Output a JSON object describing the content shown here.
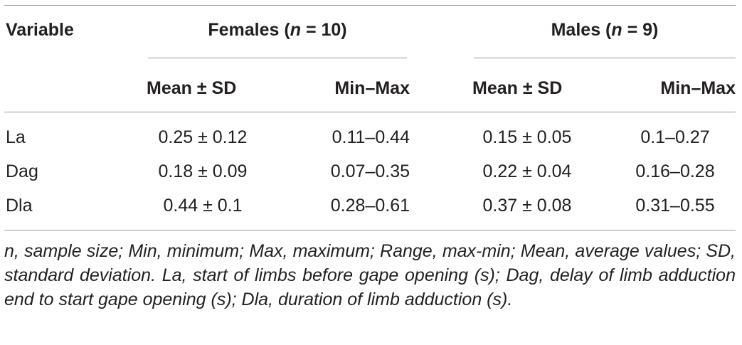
{
  "table": {
    "header": {
      "variable": "Variable",
      "females_prefix": "Females (",
      "females_n": "n",
      "females_suffix": " = 10)",
      "males_prefix": "Males (",
      "males_n": "n",
      "males_suffix": " = 9)",
      "sub_headers": [
        "Mean ± SD",
        "Min–Max",
        "Mean ± SD",
        "Min–Max"
      ]
    },
    "rows": [
      {
        "variable": "La",
        "f_mean_sd": "0.25 ± 0.12",
        "f_min_max": "0.11–0.44",
        "m_mean_sd": "0.15 ± 0.05",
        "m_min_max": "0.1–0.27"
      },
      {
        "variable": "Dag",
        "f_mean_sd": "0.18 ± 0.09",
        "f_min_max": "0.07–0.35",
        "m_mean_sd": "0.22 ± 0.04",
        "m_min_max": "0.16–0.28"
      },
      {
        "variable": "Dla",
        "f_mean_sd": "0.44 ± 0.1",
        "f_min_max": "0.28–0.61",
        "m_mean_sd": "0.37 ± 0.08",
        "m_min_max": "0.31–0.55"
      }
    ],
    "footnote": "n, sample size; Min, minimum; Max, maximum; Range, max-min; Mean, average values; SD, standard deviation. La, start of limbs before gape opening (s); Dag, delay of limb adduction end to start gape opening (s); Dla, duration of limb adduction (s)."
  }
}
